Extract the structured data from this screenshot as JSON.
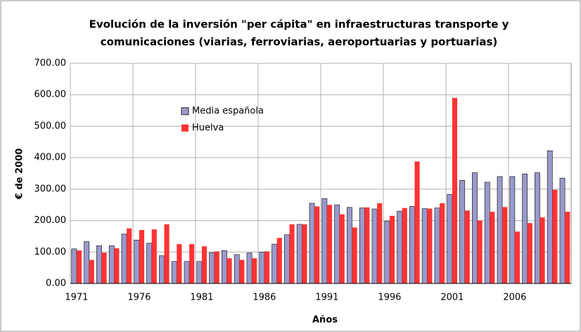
{
  "chart_data": {
    "type": "bar",
    "title": [
      "Evolución de la inversión \"per cápita\" en infraestructuras transporte y",
      "comunicaciones (viarias, ferroviarias, aeroportuarias y portuarias)"
    ],
    "x_label": "Años",
    "y_label": "€ de 2000",
    "categories": [
      "1971",
      null,
      null,
      null,
      null,
      "1976",
      null,
      null,
      null,
      null,
      "1981",
      null,
      null,
      null,
      null,
      "1986",
      null,
      null,
      null,
      null,
      "1991",
      null,
      null,
      null,
      null,
      "1996",
      null,
      null,
      null,
      null,
      "2001",
      null,
      null,
      null,
      null,
      "2006",
      null,
      null,
      null,
      null
    ],
    "series": [
      {
        "name": "Media española",
        "color": "#9999cc",
        "values": [
          110,
          133,
          120,
          120,
          157,
          138,
          128,
          88,
          70,
          70,
          70,
          98,
          105,
          92,
          97,
          100,
          125,
          155,
          188,
          255,
          270,
          250,
          242,
          240,
          237,
          198,
          230,
          245,
          238,
          240,
          283,
          328,
          352,
          322,
          340,
          340,
          348,
          352,
          422,
          335
        ]
      },
      {
        "name": "Huelva",
        "color": "#ff3333",
        "values": [
          105,
          75,
          98,
          112,
          175,
          170,
          172,
          188,
          125,
          125,
          118,
          102,
          80,
          75,
          80,
          102,
          145,
          188,
          188,
          245,
          250,
          220,
          178,
          242,
          255,
          215,
          240,
          388,
          238,
          255,
          590,
          232,
          200,
          228,
          243,
          165,
          192,
          210,
          298,
          228
        ]
      }
    ],
    "ylim": [
      0,
      700
    ],
    "yticks": [
      {
        "value": 0,
        "label": "0.00"
      },
      {
        "value": 100,
        "label": "100.00"
      },
      {
        "value": 200,
        "label": "200.00"
      },
      {
        "value": 300,
        "label": "300.00"
      },
      {
        "value": 400,
        "label": "400.00"
      },
      {
        "value": 500,
        "label": "500.00"
      },
      {
        "value": 600,
        "label": "600.00"
      },
      {
        "value": 700,
        "label": "700.00"
      }
    ],
    "grid": true,
    "legend": "upper-left"
  }
}
